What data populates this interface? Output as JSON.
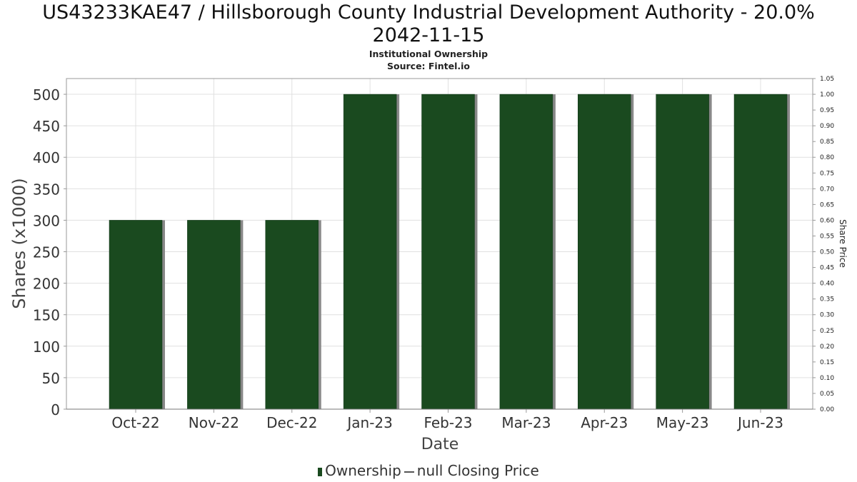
{
  "title_line1": "US43233KAE47 / Hillsborough County Industrial Development Authority - 20.0%",
  "title_line2": "2042-11-15",
  "subtitle1": "Institutional Ownership",
  "subtitle2": "Source: Fintel.io",
  "legend": {
    "ownership": "Ownership",
    "price": "null Closing Price"
  },
  "colors": {
    "bar": "#1a4a1f",
    "bar_shadow": "#888888",
    "grid": "#e0e0e0"
  },
  "chart_data": {
    "type": "bar",
    "categories": [
      "Oct-22",
      "Nov-22",
      "Dec-22",
      "Jan-23",
      "Feb-23",
      "Mar-23",
      "Apr-23",
      "May-23",
      "Jun-23"
    ],
    "series": [
      {
        "name": "Ownership",
        "values": [
          300,
          300,
          300,
          500,
          500,
          500,
          500,
          500,
          500
        ]
      }
    ],
    "xlabel": "Date",
    "ylabel": "Shares (x1000)",
    "ylim": [
      0,
      525
    ],
    "yticks": [
      0,
      50,
      100,
      150,
      200,
      250,
      300,
      350,
      400,
      450,
      500
    ],
    "y2label": "Share Price",
    "y2lim": [
      0,
      1.05
    ],
    "y2ticks": [
      "0.00",
      "0.05",
      "0.10",
      "0.15",
      "0.20",
      "0.25",
      "0.30",
      "0.35",
      "0.40",
      "0.45",
      "0.50",
      "0.55",
      "0.60",
      "0.65",
      "0.70",
      "0.75",
      "0.80",
      "0.85",
      "0.90",
      "0.95",
      "1.00",
      "1.05"
    ],
    "grid": true,
    "legend_position": "bottom"
  }
}
